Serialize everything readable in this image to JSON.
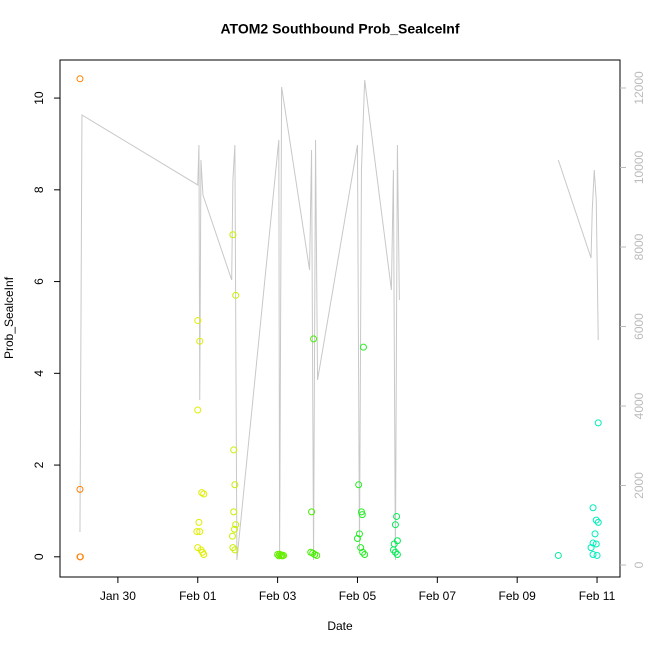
{
  "chart_data": {
    "type": "scatter",
    "title": "ATOM2 Southbound Prob_SealceInf",
    "x_label": "Date",
    "y_label": "Prob_SealceInf",
    "xlim": [
      28.55,
      42.575
    ],
    "xticks": [
      {
        "value": 30,
        "label": "Jan 30"
      },
      {
        "value": 32,
        "label": "Feb 01"
      },
      {
        "value": 34,
        "label": "Feb 03"
      },
      {
        "value": 36,
        "label": "Feb 05"
      },
      {
        "value": 38,
        "label": "Feb 07"
      },
      {
        "value": 40,
        "label": "Feb 09"
      },
      {
        "value": 42,
        "label": "Feb 11"
      }
    ],
    "ylim": [
      -0.44,
      10.83
    ],
    "yticks": [
      0,
      2,
      4,
      6,
      8,
      10
    ],
    "y2lim": [
      -302,
      12704
    ],
    "y2ticks": [
      0,
      2000,
      4000,
      6000,
      8000,
      10000,
      12000
    ],
    "line_color": "#c8c8c8",
    "series": [
      {
        "color": "#ff8000",
        "x": [
          29.05,
          29.05,
          29.05,
          29.06
        ],
        "values": [
          10.42,
          1.47,
          0.0,
          0.0
        ]
      },
      {
        "color": "#e0ee00",
        "x": [
          32.0,
          32.05,
          32.0,
          32.1,
          32.15,
          31.98,
          32.05,
          32.03,
          32.0,
          32.08,
          32.12,
          32.15
        ],
        "values": [
          5.15,
          4.7,
          3.2,
          1.4,
          1.37,
          0.55,
          0.55,
          0.75,
          0.2,
          0.15,
          0.1,
          0.05
        ]
      },
      {
        "color": "#c8f000",
        "x": [
          32.88,
          32.95,
          32.9,
          32.93,
          32.9,
          32.95,
          32.92,
          32.87,
          32.88,
          32.93
        ],
        "values": [
          7.02,
          5.7,
          2.33,
          1.57,
          0.98,
          0.7,
          0.6,
          0.45,
          0.2,
          0.15
        ]
      },
      {
        "color": "#66ee00",
        "x": [
          34.0,
          34.03,
          34.05,
          34.08,
          34.1,
          34.12,
          34.15
        ],
        "values": [
          0.05,
          0.02,
          0.06,
          0.03,
          0.04,
          0.02,
          0.03
        ]
      },
      {
        "color": "#44ee00",
        "x": [
          34.9,
          34.85,
          34.83,
          34.88,
          34.93,
          34.98
        ],
        "values": [
          4.75,
          0.98,
          0.1,
          0.08,
          0.05,
          0.03
        ]
      },
      {
        "color": "#22ee22",
        "x": [
          36.15,
          36.03,
          36.1,
          36.12,
          36.05,
          36.0,
          36.08,
          36.13,
          36.18
        ],
        "values": [
          4.57,
          1.57,
          0.98,
          0.92,
          0.5,
          0.4,
          0.2,
          0.1,
          0.05
        ]
      },
      {
        "color": "#00ee55",
        "x": [
          36.98,
          36.95,
          37.0,
          36.92,
          36.9,
          36.95,
          37.0
        ],
        "values": [
          0.88,
          0.7,
          0.35,
          0.28,
          0.15,
          0.1,
          0.05
        ]
      },
      {
        "color": "#00ee99",
        "x": [
          41.03
        ],
        "values": [
          0.03
        ]
      },
      {
        "color": "#00eebb",
        "x": [
          42.03,
          41.9,
          41.98,
          42.03,
          41.95,
          41.9,
          41.98,
          41.85,
          41.9,
          42.0
        ],
        "values": [
          2.92,
          1.07,
          0.8,
          0.75,
          0.5,
          0.3,
          0.28,
          0.2,
          0.05,
          0.03
        ]
      }
    ],
    "line": {
      "axis": "y2",
      "x": [
        29.05,
        29.1,
        32,
        32.03,
        32.05,
        32.08,
        32.13,
        32.85,
        32.88,
        32.93,
        32.98,
        34.03,
        34.05,
        34.1,
        34.15,
        34.8,
        34.85,
        34.9,
        34.95,
        35,
        36,
        36.05,
        36.1,
        36.18,
        36.85,
        36.9,
        36.95,
        37,
        37.05,
        39,
        41.03,
        41.85,
        41.88,
        41.93,
        41.98,
        42.03
      ],
      "values": [
        830,
        11321,
        9560,
        10566,
        4151,
        10189,
        9308,
        7170,
        9686,
        10566,
        126,
        10692,
        252,
        12025,
        11698,
        7421,
        10440,
        126,
        10692,
        4654,
        10566,
        377,
        9937,
        12201,
        6918,
        9937,
        126,
        10566,
        6667,
        null,
        10189,
        7723,
        8931,
        9937,
        9183,
        5660
      ]
    }
  }
}
